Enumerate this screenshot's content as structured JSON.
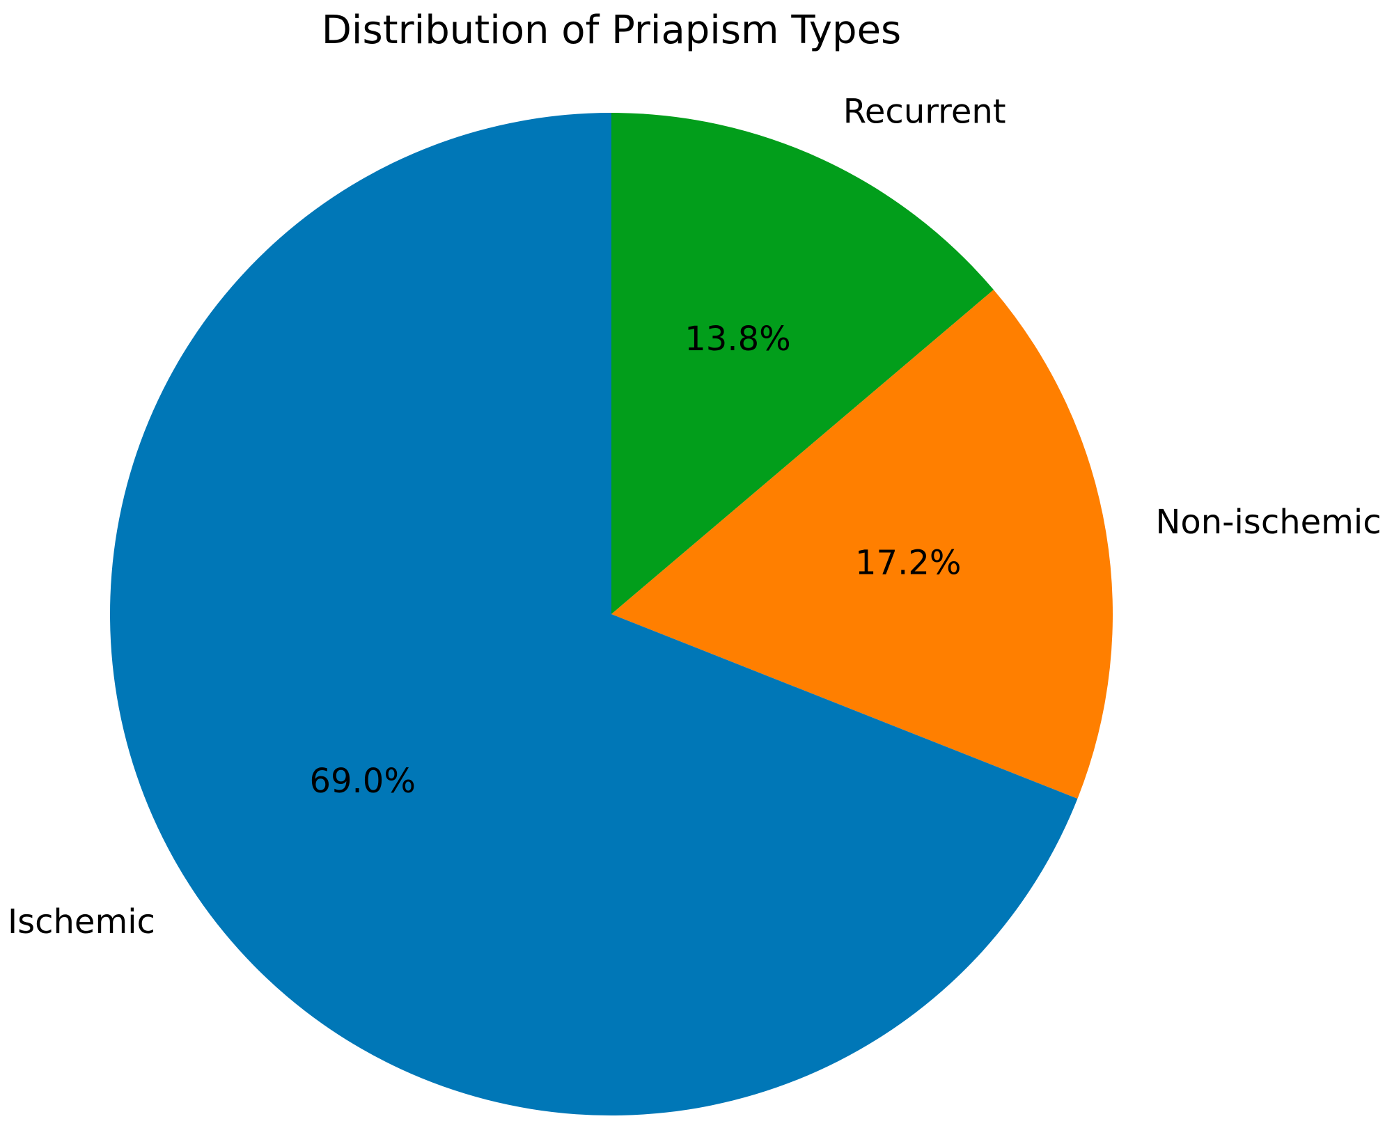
{
  "chart_data": {
    "type": "pie",
    "title": "Distribution of Priapism Types",
    "start_angle_deg": 90,
    "direction": "clockwise",
    "slices": [
      {
        "label": "Recurrent",
        "value": 13.8,
        "pct_label": "13.8%",
        "color": "#029e1b"
      },
      {
        "label": "Non-ischemic",
        "value": 17.2,
        "pct_label": "17.2%",
        "color": "#ff7f00"
      },
      {
        "label": "Ischemic",
        "value": 69.0,
        "pct_label": "69.0%",
        "color": "#0077b7"
      }
    ]
  }
}
